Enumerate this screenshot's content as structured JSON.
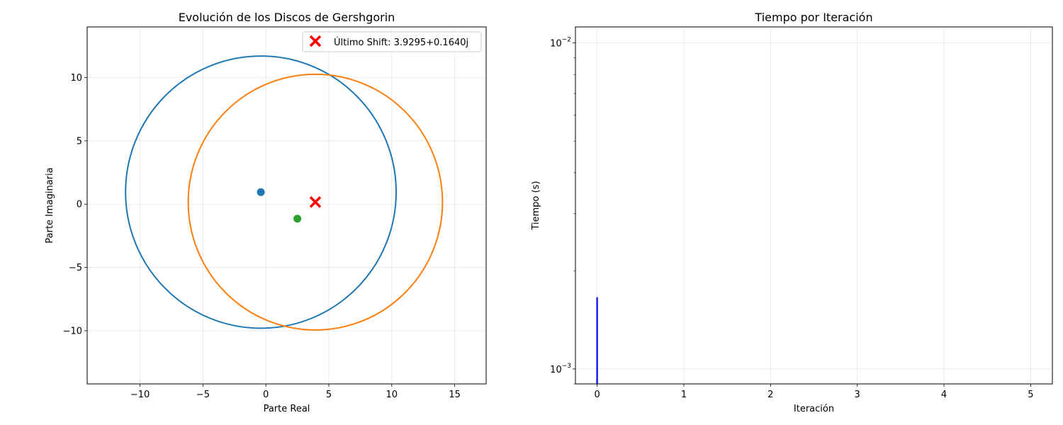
{
  "chart_data": [
    {
      "type": "scatter",
      "title": "Evolución de los Discos de Gershgorin",
      "xlabel": "Parte Real",
      "ylabel": "Parte Imaginaria",
      "xlim": [
        -14.2,
        17.5
      ],
      "ylim": [
        -14.2,
        14.0
      ],
      "xticks": [
        -10,
        -5,
        0,
        5,
        10,
        15
      ],
      "xtick_labels": [
        "−10",
        "−5",
        "0",
        "5",
        "10",
        "15"
      ],
      "yticks": [
        -10,
        -5,
        0,
        5,
        10
      ],
      "ytick_labels": [
        "−10",
        "−5",
        "0",
        "5",
        "10"
      ],
      "grid": true,
      "legend_position": "upper right",
      "discs": [
        {
          "center": [
            -0.4,
            0.95
          ],
          "radius": 10.75,
          "color": "#1f77b4"
        },
        {
          "center": [
            3.93,
            0.16
          ],
          "radius": 10.1,
          "color": "#ff7f0e"
        }
      ],
      "points": [
        {
          "x": -0.4,
          "y": 0.95,
          "color": "#1f77b4"
        },
        {
          "x": 2.5,
          "y": -1.15,
          "color": "#2ca02c"
        }
      ],
      "shift": {
        "x": 3.9295,
        "y": 0.164,
        "marker": "x",
        "color": "#ff0000",
        "label": "Último Shift: 3.9295+0.1640j"
      }
    },
    {
      "type": "line",
      "title": "Tiempo por Iteración",
      "xlabel": "Iteración",
      "ylabel": "Tiempo (s)",
      "yscale": "log",
      "xlim": [
        -0.25,
        5.25
      ],
      "ylim": [
        0.0009,
        0.0112
      ],
      "xticks": [
        0,
        1,
        2,
        3,
        4,
        5
      ],
      "xtick_labels": [
        "0",
        "1",
        "2",
        "3",
        "4",
        "5"
      ],
      "yticks": [
        0.001,
        0.01
      ],
      "ytick_base": "10",
      "ytick_exponents": [
        "−3",
        "−2"
      ],
      "grid": true,
      "series": [
        {
          "x": [
            0,
            0
          ],
          "y": [
            0.0009,
            0.00166
          ],
          "color": "#0000ff"
        }
      ]
    }
  ]
}
